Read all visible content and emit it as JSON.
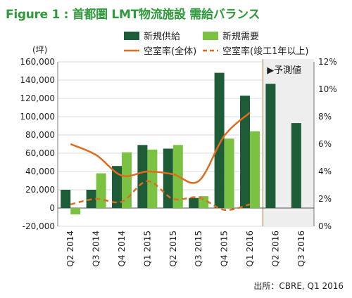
{
  "chart_data": {
    "type": "bar",
    "title": "Figure 1 : 首都圏 LMT物流施設 需給バランス",
    "y_unit_label": "(坪)",
    "categories": [
      "Q2 2014",
      "Q3 2014",
      "Q4 2014",
      "Q1 2015",
      "Q2 2015",
      "Q3 2015",
      "Q4 2015",
      "Q1 2016",
      "Q2 2016",
      "Q3 2016"
    ],
    "ylim": [
      -20000,
      160000
    ],
    "yticks": [
      "160,000",
      "140,000",
      "120,000",
      "100,000",
      "80,000",
      "60,000",
      "40,000",
      "20,000",
      "0",
      "-20,000"
    ],
    "y2lim": [
      0,
      12
    ],
    "y2ticks": [
      "12%",
      "10%",
      "8%",
      "6%",
      "4%",
      "2%",
      "0%"
    ],
    "series": [
      {
        "name": "新規供給",
        "kind": "bar",
        "color": "#1e5c38",
        "values": [
          20000,
          20000,
          46000,
          69000,
          65000,
          11000,
          148000,
          123000,
          136000,
          93000
        ]
      },
      {
        "name": "新規需要",
        "kind": "bar",
        "color": "#7cc242",
        "values": [
          -7000,
          38000,
          61000,
          64000,
          69000,
          13000,
          76000,
          84000,
          null,
          null
        ]
      },
      {
        "name": "空室率(全体)",
        "kind": "line",
        "axis": "right",
        "style": "solid",
        "color": "#e06c1f",
        "values": [
          6.0,
          5.2,
          3.7,
          4.0,
          3.8,
          3.3,
          6.6,
          8.3,
          null,
          null
        ]
      },
      {
        "name": "空室率(竣工1年以上)",
        "kind": "line",
        "axis": "right",
        "style": "dashed",
        "color": "#e06c1f",
        "values": [
          1.6,
          2.0,
          1.8,
          3.3,
          2.0,
          2.1,
          1.2,
          1.6,
          null,
          null
        ]
      }
    ],
    "forecast_label": "▶予測値",
    "legend_placement": "top"
  },
  "source": "出所：CBRE, Q1 2016"
}
